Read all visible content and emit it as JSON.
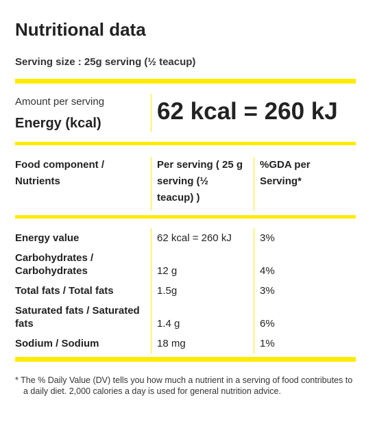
{
  "title": "Nutritional data",
  "serving_size": "Serving size : 25g serving (½ teacup)",
  "energy": {
    "caption": "Amount per serving",
    "label": "Energy (kcal)",
    "value": "62 kcal = 260 kJ"
  },
  "table": {
    "header": [
      "Food component / Nutrients",
      "Per serving ( 25 g serving (½ teacup) )",
      "%GDA per Serving*"
    ],
    "rows": [
      [
        "Energy value",
        "62 kcal = 260 kJ",
        "3%"
      ],
      [
        "Carbohydrates / Carbohydrates",
        "12 g",
        "4%"
      ],
      [
        "Total fats / Total fats",
        "1.5g",
        "3%"
      ],
      [
        "Saturated fats / Saturated fats",
        "1.4 g",
        "6%"
      ],
      [
        "Sodium / Sodium",
        "18 mg",
        "1%"
      ]
    ]
  },
  "footnote": "* The % Daily Value (DV) tells you how much a nutrient in a serving of food contributes to a daily diet. 2,000 calories a day is used for general nutrition advice."
}
